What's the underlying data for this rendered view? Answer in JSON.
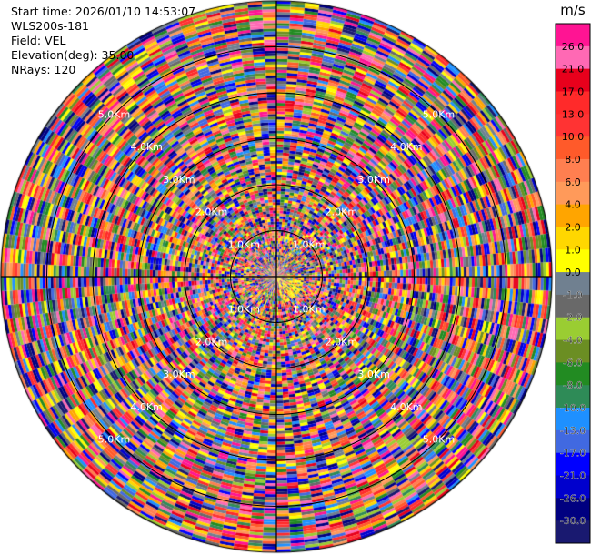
{
  "header": {
    "start_time": "Start time: 2026/01/10 14:53:07",
    "instrument": "WLS200s-181",
    "field": "Field: VEL",
    "elevation": "Elevation(deg): 35.00",
    "nrays": "NRays: 120"
  },
  "chart_data": {
    "type": "heatmap",
    "projection": "polar PPI",
    "field": "VEL",
    "units": "m/s",
    "nrays": 120,
    "range_max_km": 6.0,
    "range_rings_km": [
      1.0,
      2.0,
      3.0,
      4.0,
      5.0
    ],
    "range_labels": [
      "1.0Km",
      "2.0Km",
      "3.0Km",
      "4.0Km",
      "5.0Km"
    ],
    "colorbar": {
      "title": "m/s",
      "ticks": [
        "26.0",
        "21.0",
        "17.0",
        "13.0",
        "10.0",
        "8.0",
        "6.0",
        "4.0",
        "2.0",
        "1.0",
        "0.0",
        "-1.0",
        "-2.0",
        "-4.0",
        "-6.0",
        "-8.0",
        "-10.0",
        "-13.0",
        "-17.0",
        "-21.0",
        "-26.0",
        "-30.0"
      ],
      "colors": [
        "#ff1493",
        "#ff69b4",
        "#e8001c",
        "#ff2a2a",
        "#ff3333",
        "#ff5a2a",
        "#ff7f50",
        "#ff9a5a",
        "#ffa500",
        "#ffd700",
        "#ffff00",
        "#708090",
        "#696969",
        "#9acd32",
        "#6b8e23",
        "#228b22",
        "#2e8b57",
        "#1e90ff",
        "#4169e1",
        "#0000ff",
        "#0000cd",
        "#000080",
        "#191970"
      ]
    }
  }
}
